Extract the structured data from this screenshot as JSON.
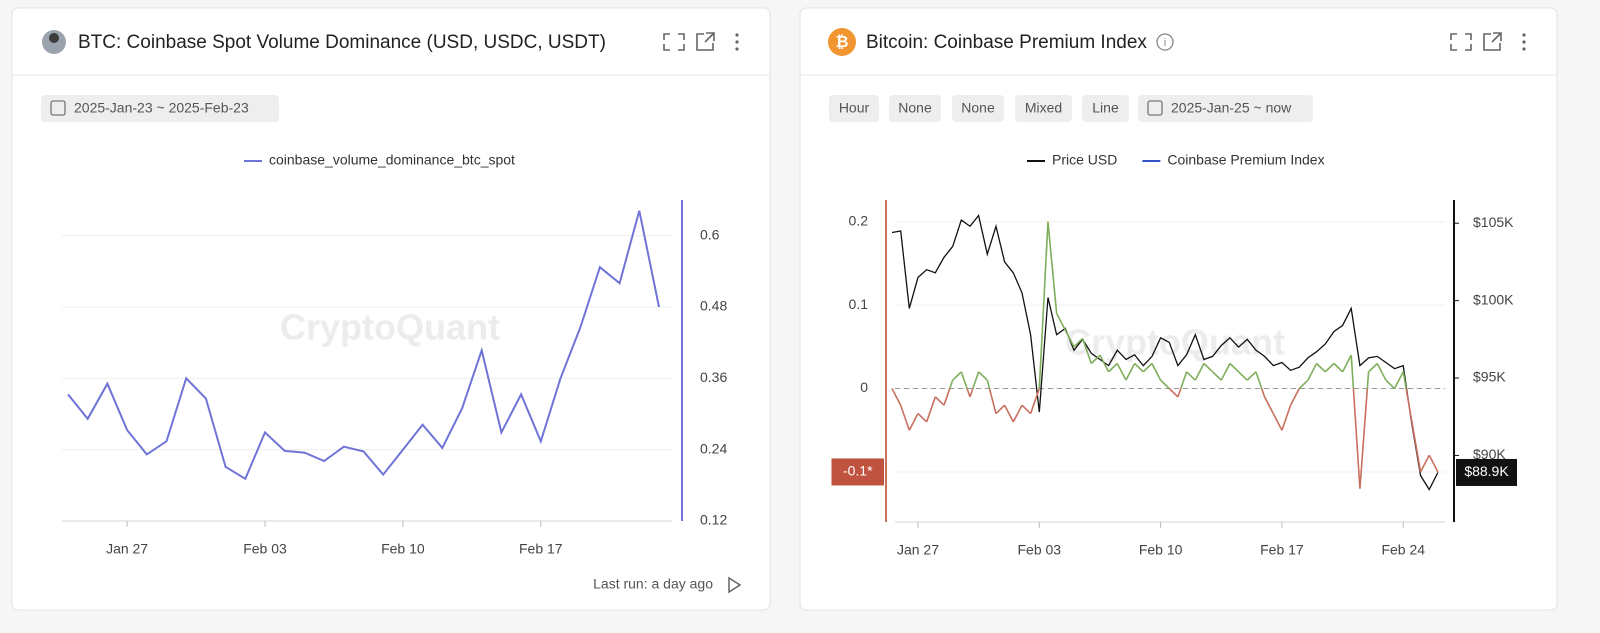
{
  "panels": [
    {
      "date_range": "2025-Jan-23 ~ 2025-Feb-23",
      "footer": "Last run: a day ago"
    },
    {
      "controls": [
        "Hour",
        "None",
        "None",
        "Mixed",
        "Line"
      ],
      "date_range": "2025-Jan-25 ~ now"
    }
  ],
  "watermark": "CryptoQuant",
  "chart_data": [
    {
      "type": "line",
      "title": "BTC: Coinbase Spot Volume Dominance (USD, USDC, USDT)",
      "categories": [
        null,
        null,
        null,
        "Jan 27",
        null,
        null,
        null,
        null,
        null,
        null,
        "Feb 03",
        null,
        null,
        null,
        null,
        null,
        null,
        "Feb 10",
        null,
        null,
        null,
        null,
        null,
        null,
        "Feb 17",
        null,
        null,
        null,
        null,
        null,
        null
      ],
      "series": [
        {
          "name": "coinbase_volume_dominance_btc_spot",
          "color": "#6f74d6",
          "values": [
            0.333,
            0.292,
            0.351,
            0.273,
            0.232,
            0.254,
            0.36,
            0.326,
            0.211,
            0.191,
            0.269,
            0.238,
            0.235,
            0.221,
            0.245,
            0.237,
            0.198,
            0.24,
            0.282,
            0.243,
            0.309,
            0.407,
            0.269,
            0.333,
            0.254,
            0.36,
            0.445,
            0.547,
            0.52,
            0.642,
            0.48
          ]
        }
      ],
      "ylim": [
        0.12,
        0.66
      ],
      "yticks": [
        0.12,
        0.24,
        0.36,
        0.48,
        0.6
      ],
      "grid": true
    },
    {
      "type": "line",
      "title": "Bitcoin: Coinbase Premium Index",
      "categories": [
        null,
        null,
        null,
        "Jan 27",
        null,
        null,
        null,
        null,
        null,
        null,
        null,
        null,
        null,
        null,
        null,
        null,
        null,
        "Feb 03",
        null,
        null,
        null,
        null,
        null,
        null,
        null,
        null,
        null,
        null,
        null,
        null,
        null,
        "Feb 10",
        null,
        null,
        null,
        null,
        null,
        null,
        null,
        null,
        null,
        null,
        null,
        null,
        null,
        "Feb 17",
        null,
        null,
        null,
        null,
        null,
        null,
        null,
        null,
        null,
        null,
        null,
        null,
        null,
        "Feb 24",
        null,
        null,
        null,
        null
      ],
      "series": [
        {
          "name": "Price USD",
          "color": "#111111",
          "axis": "y2",
          "values": [
            104400,
            104500,
            99500,
            101500,
            102000,
            101800,
            102800,
            103500,
            105200,
            104800,
            105500,
            103000,
            104800,
            102500,
            101800,
            100500,
            97800,
            92800,
            100200,
            97800,
            98200,
            96800,
            97500,
            96600,
            96200,
            95800,
            96800,
            96200,
            96500,
            95800,
            96400,
            97600,
            97300,
            95800,
            96500,
            97800,
            96200,
            96400,
            97100,
            97600,
            97000,
            97500,
            96800,
            96400,
            95800,
            96000,
            95500,
            95700,
            96300,
            96700,
            97200,
            98000,
            98400,
            99500,
            95800,
            96300,
            96400,
            96000,
            95600,
            95800,
            92000,
            88700,
            87800,
            88900
          ],
          "value_labels": [
            null,
            null,
            null,
            null,
            null,
            null,
            null,
            null,
            null,
            null,
            null,
            null,
            null,
            null,
            null,
            null,
            null,
            null,
            null,
            null,
            null,
            null,
            null,
            null,
            null,
            null,
            null,
            null,
            null,
            null,
            null,
            null,
            null,
            null,
            null,
            null,
            null,
            null,
            null,
            null,
            null,
            null,
            null,
            null,
            null,
            null,
            null,
            null,
            null,
            null,
            null,
            null,
            null,
            null,
            null,
            null,
            null,
            null,
            null,
            null,
            null,
            null,
            null,
            "$88.9K"
          ]
        },
        {
          "name": "Coinbase Premium Index",
          "color": "#3653c7",
          "positive_color": "#7fae5a",
          "negative_color": "#c9705f",
          "values": [
            0.0,
            -0.02,
            -0.05,
            -0.03,
            -0.04,
            -0.01,
            -0.02,
            0.01,
            0.02,
            -0.01,
            0.02,
            0.01,
            -0.03,
            -0.02,
            -0.04,
            -0.02,
            -0.03,
            0.0,
            0.2,
            0.09,
            0.07,
            0.05,
            0.06,
            0.03,
            0.04,
            0.02,
            0.03,
            0.01,
            0.03,
            0.02,
            0.03,
            0.01,
            0.0,
            -0.01,
            0.02,
            0.01,
            0.03,
            0.02,
            0.01,
            0.03,
            0.02,
            0.01,
            0.02,
            -0.01,
            -0.03,
            -0.05,
            -0.02,
            0.0,
            0.01,
            0.03,
            0.02,
            0.03,
            0.02,
            0.04,
            -0.12,
            0.02,
            0.03,
            0.01,
            0.0,
            0.02,
            -0.04,
            -0.1,
            -0.08,
            -0.1
          ],
          "value_labels": [
            null,
            null,
            null,
            null,
            null,
            null,
            null,
            null,
            null,
            null,
            null,
            null,
            null,
            null,
            null,
            null,
            null,
            null,
            null,
            null,
            null,
            null,
            null,
            null,
            null,
            null,
            null,
            null,
            null,
            null,
            null,
            null,
            null,
            null,
            null,
            null,
            null,
            null,
            null,
            null,
            null,
            null,
            null,
            null,
            null,
            null,
            null,
            null,
            null,
            null,
            null,
            null,
            null,
            null,
            null,
            null,
            null,
            null,
            null,
            null,
            null,
            null,
            null,
            "-0.1*"
          ]
        }
      ],
      "ylim": [
        -0.16,
        0.226
      ],
      "yticks": [
        -0.1,
        0,
        0.1,
        0.2
      ],
      "y2lim": [
        85700,
        106500
      ],
      "y2ticks": [
        {
          "value": 90000,
          "label": "$90K"
        },
        {
          "value": 95000,
          "label": "$95K"
        },
        {
          "value": 100000,
          "label": "$100K"
        },
        {
          "value": 105000,
          "label": "$105K"
        }
      ],
      "grid": true,
      "zero_line": true
    }
  ]
}
